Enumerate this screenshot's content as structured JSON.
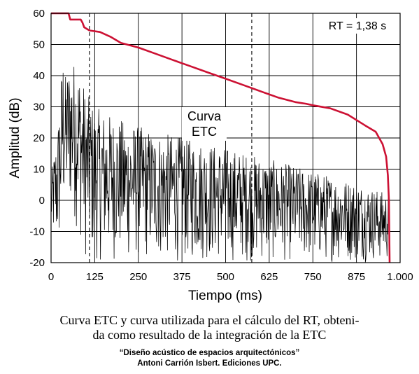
{
  "chart_data": {
    "type": "line",
    "xlabel": "Tiempo (ms)",
    "ylabel": "Amplitud (dB)",
    "xlim": [
      0,
      1000
    ],
    "ylim": [
      -20,
      60
    ],
    "x_ticks": [
      "0",
      "125",
      "250",
      "375",
      "500",
      "625",
      "750",
      "875",
      "1.000"
    ],
    "y_ticks": [
      "60",
      "50",
      "40",
      "30",
      "20",
      "10",
      "0",
      "-10",
      "-20"
    ],
    "grid": true,
    "dashed_markers_x": [
      110,
      575
    ],
    "series": [
      {
        "name": "",
        "color": "#cc1133",
        "x": [
          0,
          50,
          55,
          60,
          85,
          90,
          95,
          110,
          140,
          170,
          200,
          250,
          300,
          350,
          400,
          450,
          500,
          550,
          600,
          650,
          700,
          730,
          750,
          800,
          850,
          900,
          930,
          950,
          960,
          965,
          968,
          970
        ],
        "y": [
          60,
          60,
          58,
          58,
          58,
          57,
          55.5,
          54.5,
          54,
          52.5,
          50.5,
          49,
          47,
          45,
          43,
          41,
          39,
          37,
          35,
          33,
          31.5,
          31,
          30.5,
          29.5,
          27.5,
          24,
          22,
          18,
          14,
          8,
          0,
          -20
        ]
      },
      {
        "name": "",
        "color": "#000000",
        "envelope_x": [
          0,
          20,
          35,
          40,
          55,
          75,
          100,
          125,
          200,
          300,
          400,
          500,
          600,
          700,
          800,
          900,
          970
        ],
        "envelope_y_max": [
          8,
          25,
          50,
          40,
          45,
          45,
          35,
          30,
          26,
          22,
          20,
          17,
          14,
          11,
          8,
          5,
          2
        ],
        "envelope_y_min": [
          -12,
          -20,
          -10,
          -5,
          -5,
          -10,
          -20,
          -20,
          -20,
          -20,
          -20,
          -20,
          -20,
          -20,
          -20,
          -20,
          -20
        ]
      }
    ]
  },
  "labels": {
    "rt": "RT = 1,38 s",
    "curva_etc_line1": "Curva",
    "curva_etc_line2": "ETC"
  },
  "caption": {
    "line1": "Curva ETC y curva utilizada para el cálculo del RT, obteni-",
    "line2": "da como resultado de la integración de la ETC"
  },
  "credit": {
    "line1": "“Diseño acústico de espacios arquitectónicos”",
    "line2": "Antoni Carrión Isbert. Ediciones UPC."
  }
}
